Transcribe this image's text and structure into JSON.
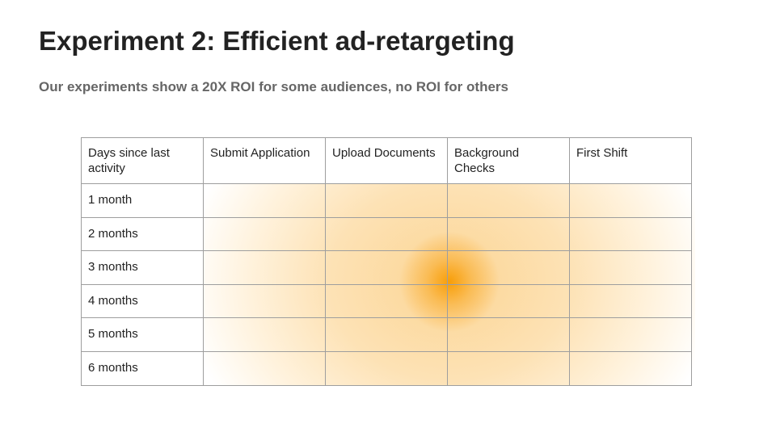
{
  "slide": {
    "title": "Experiment 2: Efficient ad-retargeting",
    "subtitle": "Our experiments show a 20X ROI for some audiences, no ROI for others"
  },
  "table": {
    "headers": [
      "Days since last activity",
      "Submit Application",
      "Upload Documents",
      "Background Checks",
      "First Shift"
    ],
    "rows": [
      "1 month",
      "2 months",
      "3 months",
      "4 months",
      "5 months",
      "6 months"
    ],
    "heatmap": {
      "peak_color": "#f89e08",
      "low_color": "#ffffff",
      "peak_location": "between Upload Documents and Background Checks, 3–4 months"
    }
  }
}
